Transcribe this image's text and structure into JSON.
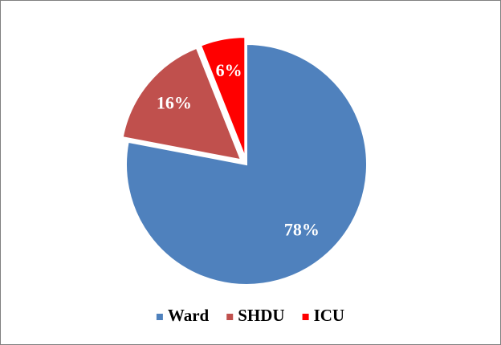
{
  "chart_data": {
    "type": "pie",
    "categories": [
      "Ward",
      "SHDU",
      "ICU"
    ],
    "values": [
      78,
      16,
      6
    ],
    "value_labels": [
      "78%",
      "16%",
      "6%"
    ],
    "colors": [
      "#4f81bd",
      "#c0504d",
      "#ff0000"
    ],
    "exploded": [
      false,
      true,
      true
    ],
    "legend": "bottom"
  }
}
